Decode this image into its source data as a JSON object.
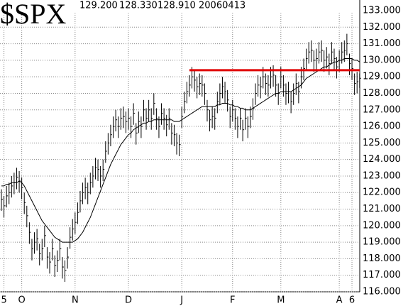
{
  "chart_data": {
    "type": "hlc",
    "title": "$SPX",
    "quote": [
      "129.200",
      "128.330",
      "128.910",
      "20060413"
    ],
    "categories": [
      null,
      "5",
      null,
      null,
      null,
      null,
      null,
      null,
      "O",
      null,
      null,
      null,
      null,
      null,
      null,
      null,
      null,
      null,
      null,
      null,
      null,
      null,
      null,
      null,
      null,
      null,
      null,
      null,
      null,
      "N",
      null,
      null,
      null,
      null,
      null,
      null,
      null,
      null,
      null,
      null,
      null,
      null,
      null,
      null,
      null,
      null,
      null,
      null,
      null,
      null,
      "D",
      null,
      null,
      null,
      null,
      null,
      null,
      null,
      null,
      null,
      null,
      null,
      null,
      null,
      null,
      null,
      null,
      null,
      null,
      null,
      null,
      "J",
      null,
      null,
      null,
      null,
      null,
      null,
      null,
      null,
      null,
      null,
      null,
      null,
      null,
      null,
      null,
      null,
      null,
      null,
      null,
      "F",
      null,
      null,
      null,
      null,
      null,
      null,
      null,
      null,
      null,
      null,
      null,
      null,
      null,
      null,
      null,
      null,
      null,
      null,
      "M",
      null,
      null,
      null,
      null,
      null,
      null,
      null,
      null,
      null,
      null,
      null,
      null,
      null,
      null,
      null,
      null,
      null,
      null,
      null,
      null,
      null,
      null,
      "A",
      null,
      null,
      null,
      null,
      "6",
      null,
      null,
      null
    ],
    "high": [
      122.2,
      121.8,
      122.4,
      122.6,
      123.0,
      123.2,
      123.5,
      123.3,
      122.9,
      122.0,
      121.2,
      120.2,
      119.2,
      119.6,
      119.8,
      118.9,
      119.2,
      120.0,
      118.7,
      118.4,
      119.2,
      118.2,
      118.5,
      119.2,
      118.1,
      117.9,
      118.7,
      119.9,
      120.4,
      120.8,
      121.4,
      122.1,
      122.6,
      122.9,
      122.6,
      123.2,
      123.6,
      124.1,
      124.0,
      123.6,
      124.0,
      125.1,
      125.6,
      126.1,
      126.6,
      127.0,
      126.6,
      127.1,
      127.2,
      126.9,
      127.1,
      126.6,
      127.4,
      126.2,
      126.9,
      126.6,
      127.6,
      127.1,
      127.6,
      127.1,
      128.0,
      127.1,
      126.6,
      127.4,
      127.1,
      126.7,
      127.1,
      126.2,
      126.1,
      125.6,
      125.5,
      127.2,
      128.1,
      128.7,
      129.1,
      129.6,
      129.4,
      129.0,
      129.2,
      129.1,
      128.6,
      127.6,
      127.0,
      127.2,
      127.1,
      128.1,
      128.6,
      129.0,
      128.7,
      128.2,
      127.2,
      127.6,
      127.1,
      126.6,
      127.1,
      126.4,
      127.1,
      126.6,
      127.2,
      127.7,
      128.6,
      129.1,
      129.0,
      129.6,
      129.2,
      129.1,
      129.6,
      129.7,
      129.1,
      128.6,
      129.6,
      129.1,
      128.6,
      128.7,
      128.1,
      128.6,
      129.2,
      128.7,
      129.6,
      130.1,
      130.7,
      131.1,
      131.2,
      130.6,
      130.7,
      131.1,
      131.2,
      130.6,
      130.8,
      130.4,
      131.1,
      130.7,
      130.2,
      130.6,
      131.1,
      131.2,
      131.6,
      130.4,
      130.1,
      129.2,
      129.3,
      129.2
    ],
    "low": [
      120.9,
      120.5,
      121.1,
      121.3,
      121.7,
      121.9,
      122.2,
      122.0,
      121.6,
      120.7,
      119.9,
      118.9,
      117.9,
      118.3,
      118.5,
      117.6,
      117.9,
      118.7,
      117.4,
      117.1,
      117.9,
      116.9,
      117.2,
      117.9,
      116.8,
      116.6,
      117.4,
      118.6,
      119.1,
      119.5,
      120.1,
      120.8,
      121.3,
      121.6,
      121.3,
      121.9,
      122.3,
      122.8,
      122.7,
      122.3,
      122.7,
      123.8,
      124.3,
      124.8,
      125.3,
      125.7,
      125.3,
      125.8,
      125.9,
      125.6,
      125.8,
      125.3,
      126.1,
      124.9,
      125.6,
      125.3,
      126.3,
      125.8,
      126.3,
      125.8,
      126.7,
      125.8,
      125.3,
      126.1,
      125.8,
      125.4,
      125.8,
      124.9,
      124.8,
      124.3,
      124.2,
      125.9,
      126.8,
      127.4,
      127.8,
      128.3,
      128.1,
      127.7,
      127.9,
      127.8,
      127.3,
      126.3,
      125.7,
      125.9,
      125.8,
      126.8,
      127.3,
      127.7,
      127.4,
      126.9,
      125.9,
      126.3,
      125.8,
      125.3,
      125.8,
      125.1,
      125.8,
      125.3,
      125.9,
      126.4,
      127.3,
      127.8,
      127.7,
      128.3,
      127.9,
      127.8,
      128.3,
      128.4,
      127.8,
      127.3,
      128.3,
      127.8,
      127.3,
      127.4,
      126.8,
      127.3,
      127.9,
      127.4,
      128.3,
      128.8,
      129.4,
      129.8,
      129.9,
      129.3,
      129.4,
      129.8,
      129.9,
      129.3,
      129.5,
      129.1,
      129.8,
      129.4,
      128.9,
      129.3,
      129.8,
      129.9,
      130.3,
      129.1,
      128.8,
      127.9,
      128.0,
      128.33
    ],
    "close": [
      121.6,
      121.2,
      121.8,
      122.0,
      122.4,
      122.6,
      122.9,
      122.7,
      122.3,
      121.4,
      120.6,
      119.6,
      118.6,
      119.0,
      119.2,
      118.3,
      118.6,
      119.4,
      118.1,
      117.8,
      118.6,
      117.6,
      117.9,
      118.6,
      117.5,
      117.3,
      118.1,
      119.3,
      119.8,
      120.2,
      120.8,
      121.5,
      122.0,
      122.3,
      122.0,
      122.6,
      123.0,
      123.5,
      123.4,
      123.0,
      123.4,
      124.5,
      125.0,
      125.5,
      126.0,
      126.4,
      126.0,
      126.5,
      126.6,
      126.3,
      126.5,
      126.0,
      126.8,
      125.6,
      126.3,
      126.0,
      127.0,
      126.5,
      127.0,
      126.5,
      127.4,
      126.5,
      126.0,
      126.8,
      126.5,
      126.1,
      126.5,
      125.6,
      125.5,
      125.0,
      124.9,
      126.6,
      127.5,
      128.1,
      128.5,
      129.0,
      128.8,
      128.4,
      128.6,
      128.5,
      128.0,
      127.0,
      126.4,
      126.6,
      126.5,
      127.5,
      128.0,
      128.4,
      128.1,
      127.6,
      126.6,
      127.0,
      126.5,
      126.0,
      126.5,
      125.8,
      126.5,
      126.0,
      126.6,
      127.1,
      128.0,
      128.5,
      128.4,
      129.0,
      128.6,
      128.5,
      129.0,
      129.1,
      128.5,
      128.0,
      129.0,
      128.5,
      128.0,
      128.1,
      127.5,
      128.0,
      128.6,
      128.1,
      129.0,
      129.5,
      130.1,
      130.5,
      130.6,
      130.0,
      130.1,
      130.5,
      130.6,
      130.0,
      130.2,
      129.8,
      130.5,
      130.1,
      129.6,
      130.0,
      130.5,
      130.6,
      131.0,
      129.8,
      129.5,
      128.6,
      128.7,
      128.91
    ],
    "ma": [
      122.4,
      122.4,
      122.5,
      122.5,
      122.6,
      122.6,
      122.6,
      122.7,
      122.6,
      122.4,
      122.1,
      121.8,
      121.5,
      121.2,
      120.9,
      120.6,
      120.3,
      120.1,
      119.9,
      119.7,
      119.5,
      119.3,
      119.2,
      119.1,
      119.0,
      119.0,
      119.0,
      119.0,
      119.0,
      119.1,
      119.2,
      119.4,
      119.6,
      119.9,
      120.2,
      120.5,
      120.9,
      121.3,
      121.7,
      122.1,
      122.5,
      122.9,
      123.3,
      123.7,
      124.0,
      124.3,
      124.6,
      124.9,
      125.1,
      125.3,
      125.5,
      125.6,
      125.8,
      125.9,
      126.0,
      126.1,
      126.2,
      126.2,
      126.3,
      126.3,
      126.4,
      126.4,
      126.4,
      126.4,
      126.4,
      126.4,
      126.4,
      126.4,
      126.3,
      126.3,
      126.3,
      126.4,
      126.5,
      126.6,
      126.7,
      126.8,
      126.9,
      127.0,
      127.1,
      127.2,
      127.2,
      127.2,
      127.2,
      127.2,
      127.2,
      127.3,
      127.3,
      127.4,
      127.4,
      127.4,
      127.3,
      127.3,
      127.2,
      127.2,
      127.1,
      127.1,
      127.0,
      127.0,
      127.0,
      127.1,
      127.2,
      127.3,
      127.4,
      127.5,
      127.6,
      127.7,
      127.8,
      127.9,
      128.0,
      128.0,
      128.1,
      128.1,
      128.1,
      128.1,
      128.1,
      128.2,
      128.3,
      128.4,
      128.5,
      128.7,
      128.9,
      129.0,
      129.1,
      129.2,
      129.3,
      129.4,
      129.5,
      129.6,
      129.6,
      129.7,
      129.8,
      129.9,
      129.9,
      130.0,
      130.0,
      130.1,
      130.1,
      130.1,
      130.1,
      130.0,
      130.0,
      129.9
    ],
    "bar_color": "#000000",
    "ma_color": "#000000",
    "hline": {
      "value": 129.4,
      "x_start": 74,
      "color": "#e00000"
    },
    "ylim": [
      116,
      133
    ],
    "yticks": [
      {
        "value": 116,
        "label": "116.000"
      },
      {
        "value": 117,
        "label": "117.000"
      },
      {
        "value": 118,
        "label": "118.000"
      },
      {
        "value": 119,
        "label": "119.000"
      },
      {
        "value": 120,
        "label": "120.000"
      },
      {
        "value": 121,
        "label": "121.000"
      },
      {
        "value": 122,
        "label": "122.000"
      },
      {
        "value": 123,
        "label": "123.000"
      },
      {
        "value": 124,
        "label": "124.000"
      },
      {
        "value": 125,
        "label": "125.000"
      },
      {
        "value": 126,
        "label": "126.000"
      },
      {
        "value": 127,
        "label": "127.000"
      },
      {
        "value": 128,
        "label": "128.000"
      },
      {
        "value": 129,
        "label": "129.000"
      },
      {
        "value": 130,
        "label": "130.000"
      },
      {
        "value": 131,
        "label": "131.000"
      },
      {
        "value": 132,
        "label": "132.000"
      },
      {
        "value": 133,
        "label": "133.000"
      }
    ],
    "grid": true
  }
}
